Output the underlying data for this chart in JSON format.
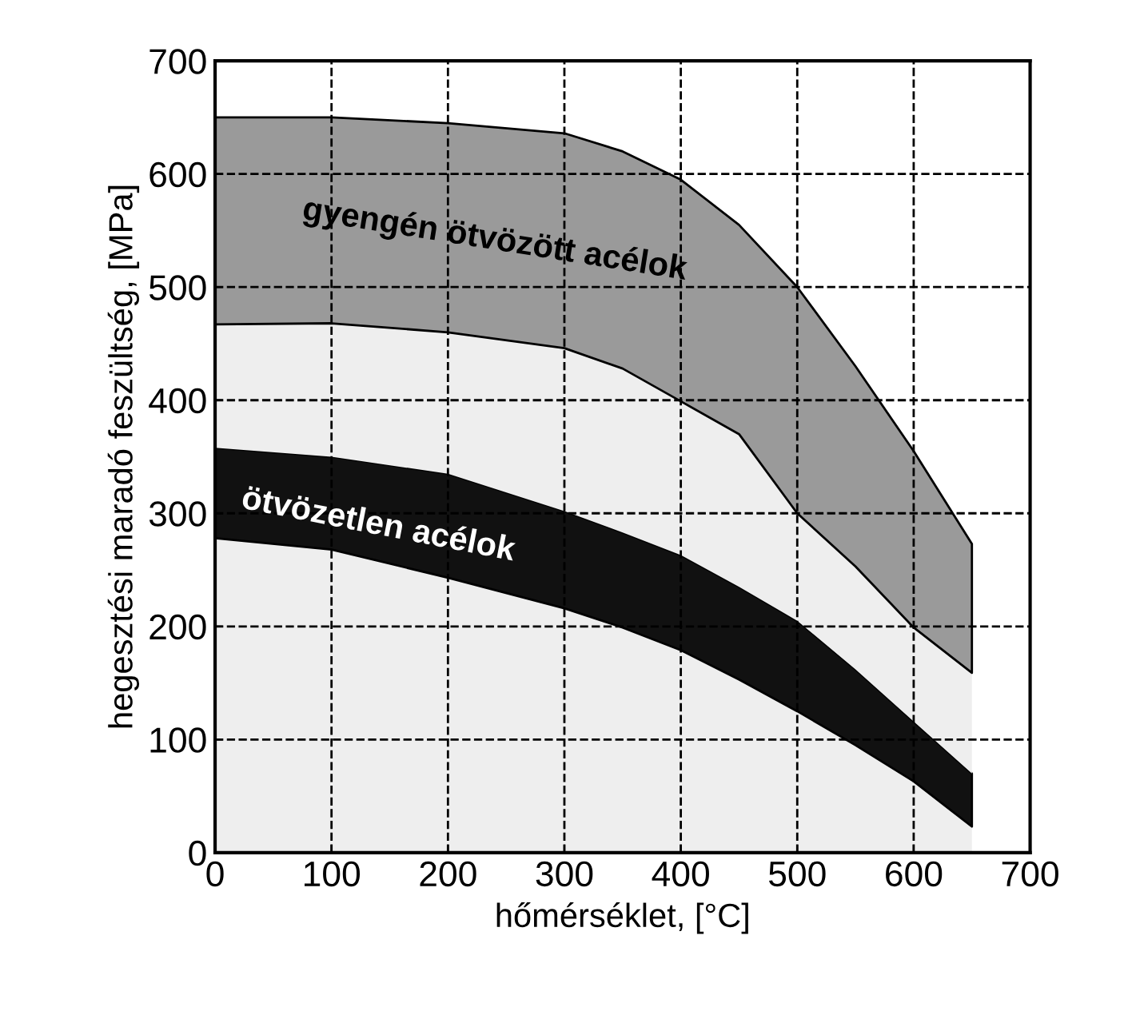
{
  "chart_data": {
    "type": "area",
    "stacked": true,
    "xlabel": "hőmérséklet, [°C]",
    "ylabel": "hegesztési maradó feszültség, [MPa]",
    "x": [
      0,
      100,
      200,
      300,
      350,
      400,
      450,
      500,
      550,
      600,
      650
    ],
    "series": [
      {
        "color": "#eeeeee",
        "values": [
          278,
          268,
          243,
          216,
          199,
          179,
          153,
          125,
          95,
          63,
          23
        ]
      },
      {
        "name": "ötvözetlen acélok",
        "color": "#111111",
        "values": [
          80,
          82,
          92,
          86,
          84,
          84,
          82,
          80,
          67,
          53,
          47
        ]
      },
      {
        "color": "#eeeeee",
        "values": [
          109,
          118,
          125,
          144,
          145,
          136,
          135,
          95,
          91,
          83,
          89
        ]
      },
      {
        "name": "gyengén ötvözött acélok",
        "color": "#9a9a9a",
        "values": [
          183,
          182,
          185,
          190,
          192,
          196,
          185,
          200,
          177,
          156,
          114
        ]
      }
    ],
    "xlim": [
      0,
      700
    ],
    "ylim": [
      0,
      700
    ],
    "xticks": [
      0,
      100,
      200,
      300,
      400,
      500,
      600,
      700
    ],
    "yticks": [
      0,
      100,
      200,
      300,
      400,
      500,
      600,
      700
    ],
    "grid": true,
    "line_style": "dashed"
  }
}
